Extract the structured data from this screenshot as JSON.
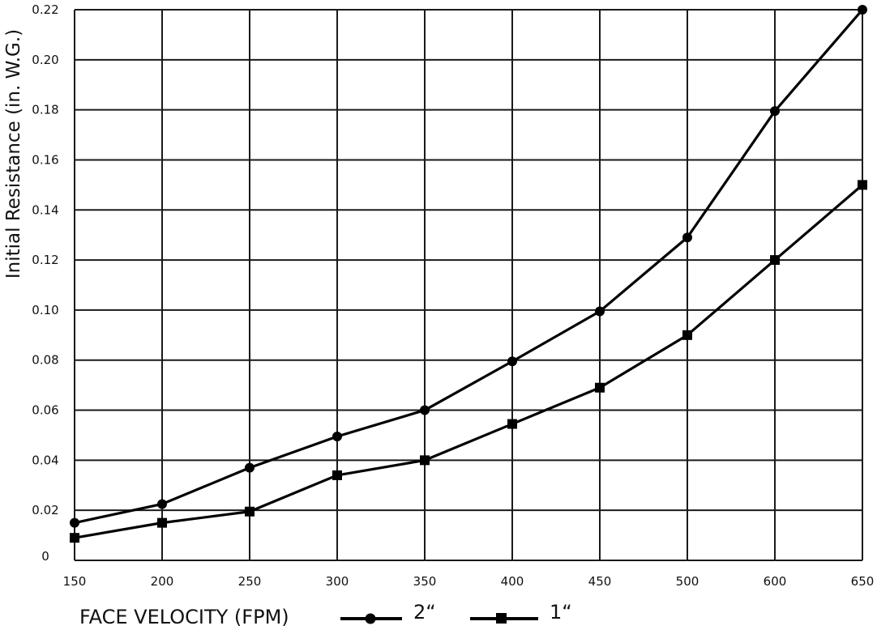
{
  "chart_data": {
    "type": "line",
    "title": "",
    "xlabel": "FACE VELOCITY (FPM)",
    "ylabel": "Initial Resistance (in. W.G.)",
    "categories": [
      "150",
      "200",
      "250",
      "300",
      "350",
      "400",
      "450",
      "500",
      "600",
      "650"
    ],
    "y_ticks": [
      "0",
      "0.02",
      "0.04",
      "0.06",
      "0.08",
      "0.10",
      "0.12",
      "0.14",
      "0.16",
      "0.18",
      "0.20",
      "0.22"
    ],
    "ylim": [
      0,
      0.22
    ],
    "grid": true,
    "legend_position": "bottom",
    "series": [
      {
        "name": "2“",
        "marker": "circle",
        "color": "#000000",
        "values": [
          0.015,
          0.0225,
          0.037,
          0.0495,
          0.06,
          0.0795,
          0.0995,
          0.129,
          0.1795,
          0.22
        ]
      },
      {
        "name": "1“",
        "marker": "square",
        "color": "#000000",
        "values": [
          0.009,
          0.015,
          0.0195,
          0.034,
          0.04,
          0.0545,
          0.069,
          0.09,
          0.12,
          0.15
        ]
      }
    ]
  }
}
